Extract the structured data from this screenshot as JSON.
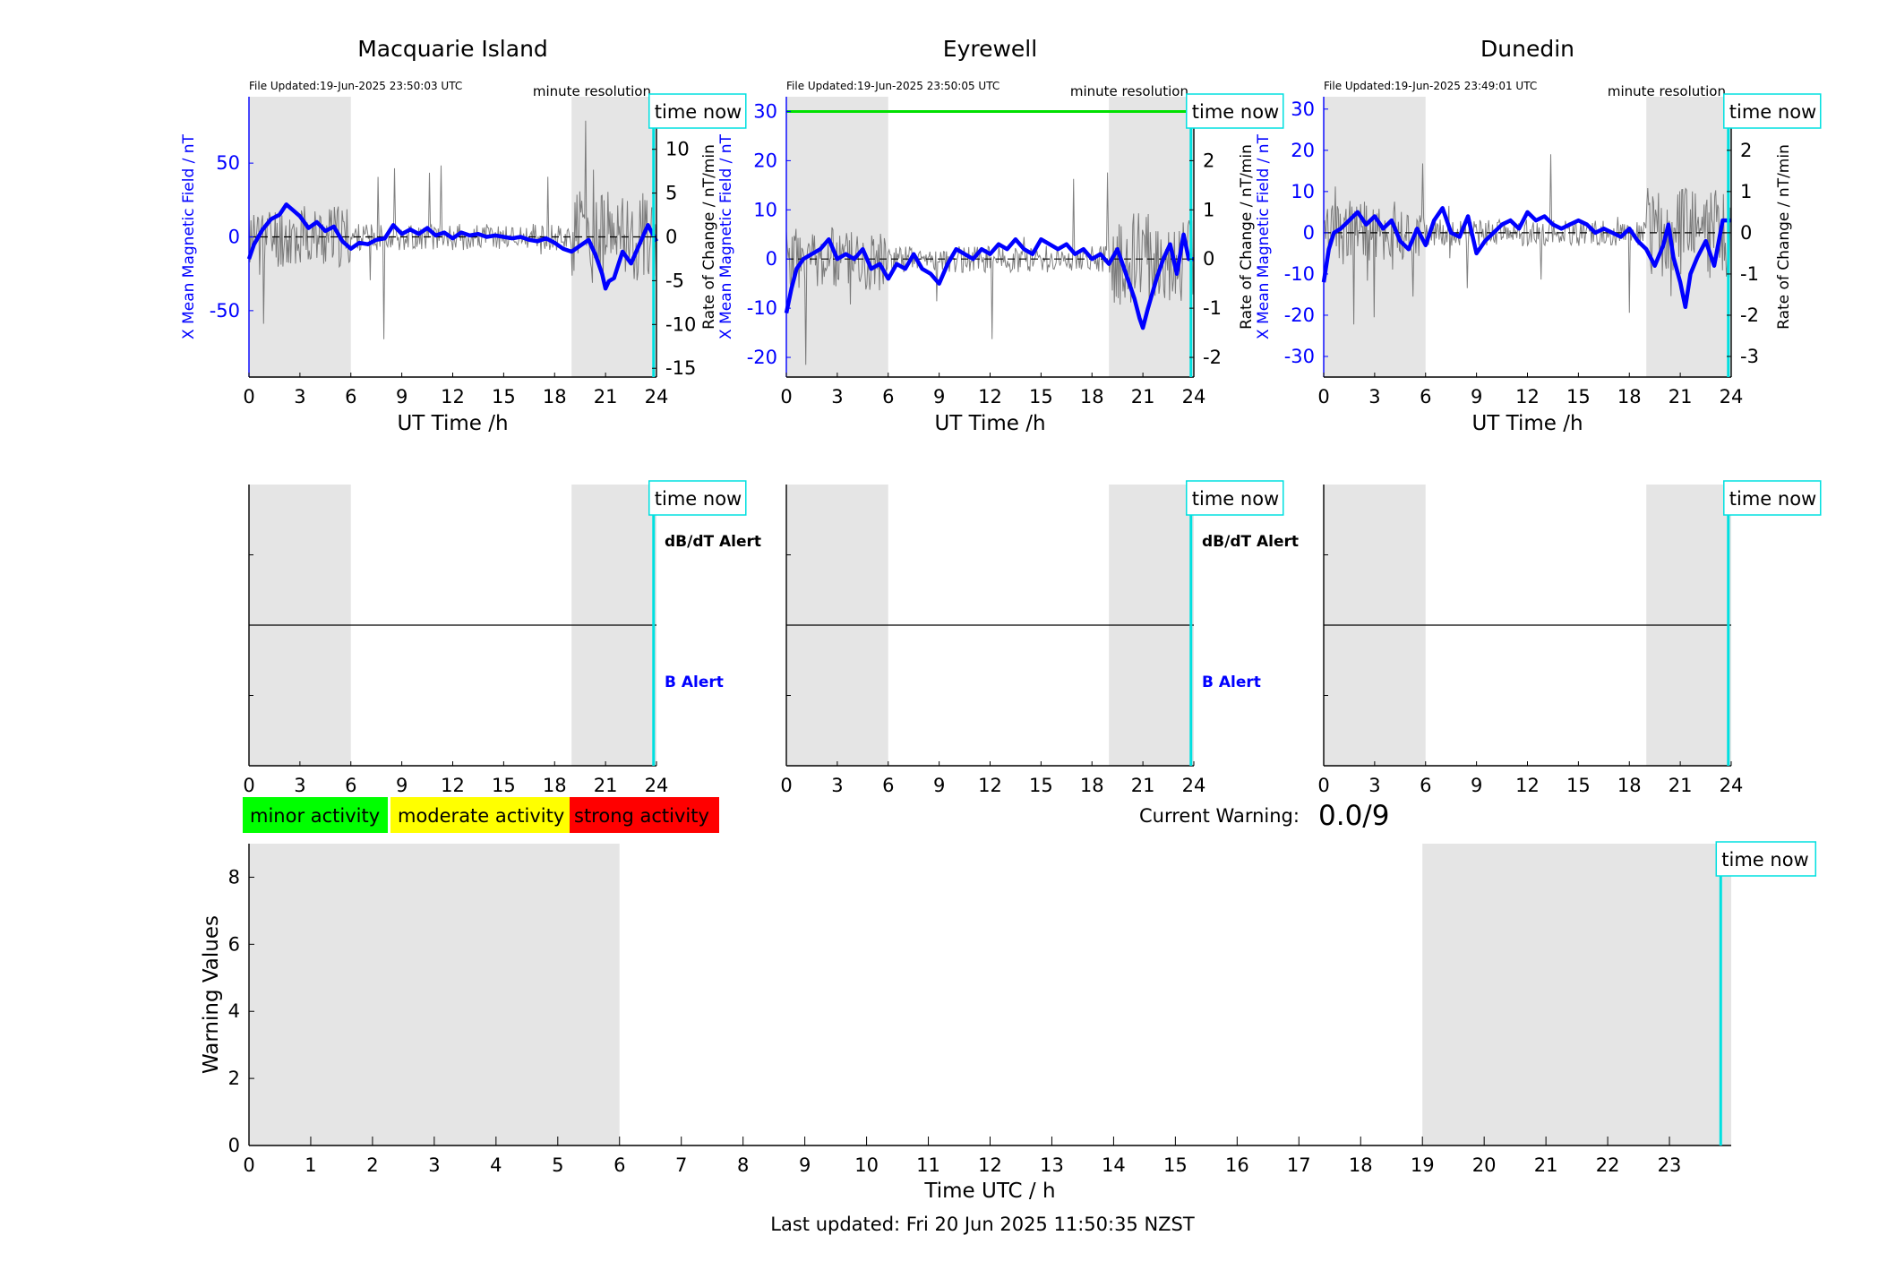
{
  "chart_data": [
    {
      "type": "line",
      "title": "Macquarie Island",
      "file_updated": "File Updated:19-Jun-2025 23:50:03 UTC",
      "resolution_label": "minute resolution",
      "time_now_label": "time now",
      "time_now_h": 23.83,
      "shaded_intervals": [
        [
          0,
          6
        ],
        [
          19,
          24
        ]
      ],
      "xlabel": "UT Time /h",
      "xlim": [
        0,
        24
      ],
      "xticks": [
        "0",
        "3",
        "6",
        "9",
        "12",
        "15",
        "18",
        "21",
        "24"
      ],
      "ylabel": "X Mean Magnetic Field / nT",
      "ylim": [
        -95,
        95
      ],
      "yticks": [
        "-50",
        "0",
        "50"
      ],
      "ylabel_right": "Rate of Change / nT/min",
      "ylim_right": [
        -16,
        16
      ],
      "yticks_right": [
        "-15",
        "-10",
        "-5",
        "0",
        "5",
        "10",
        "15"
      ],
      "alert_line_value": null,
      "grey_seed": 11,
      "series": [
        {
          "color": "#0000ff",
          "x": [
            0,
            0.3,
            0.8,
            1.3,
            1.8,
            2.2,
            2.6,
            3.0,
            3.5,
            4.0,
            4.5,
            5.0,
            5.5,
            6.0,
            6.5,
            7.0,
            7.5,
            8.0,
            8.5,
            9.0,
            9.5,
            10.0,
            10.5,
            11.0,
            11.5,
            12.0,
            12.5,
            13.0,
            13.5,
            14.0,
            14.5,
            15.0,
            15.5,
            16.0,
            16.5,
            17.0,
            17.5,
            18.0,
            18.5,
            19.0,
            19.5,
            20.0,
            20.4,
            20.8,
            21.0,
            21.2,
            21.5,
            22.0,
            22.5,
            23.0,
            23.5,
            24.0
          ],
          "values": [
            -15,
            -5,
            5,
            12,
            15,
            22,
            18,
            14,
            6,
            10,
            4,
            7,
            -3,
            -8,
            -4,
            -5,
            -2,
            -1,
            8,
            2,
            5,
            2,
            6,
            1,
            3,
            -1,
            3,
            1,
            2,
            0,
            1,
            0,
            -1,
            0,
            -2,
            -3,
            -1,
            -4,
            -8,
            -10,
            -6,
            -2,
            -12,
            -25,
            -35,
            -30,
            -28,
            -10,
            -18,
            -5,
            8,
            -3
          ]
        }
      ]
    },
    {
      "type": "line",
      "title": "Eyrewell",
      "file_updated": "File Updated:19-Jun-2025 23:50:05 UTC",
      "resolution_label": "minute resolution",
      "time_now_label": "time now",
      "time_now_h": 23.83,
      "shaded_intervals": [
        [
          0,
          6
        ],
        [
          19,
          24
        ]
      ],
      "xlabel": "UT Time /h",
      "xlim": [
        0,
        24
      ],
      "xticks": [
        "0",
        "3",
        "6",
        "9",
        "12",
        "15",
        "18",
        "21",
        "24"
      ],
      "ylabel": "X Mean Magnetic Field / nT",
      "ylim": [
        -24,
        33
      ],
      "yticks": [
        "-20",
        "-10",
        "0",
        "10",
        "20",
        "30"
      ],
      "ylabel_right": "Rate of Change / nT/min",
      "ylim_right": [
        -2.4,
        3.3
      ],
      "yticks_right": [
        "-2",
        "-1",
        "0",
        "1",
        "2",
        "3"
      ],
      "alert_line_value": 3,
      "alert_line_color": "#00e000",
      "grey_seed": 23,
      "series": [
        {
          "color": "#0000ff",
          "x": [
            0,
            0.3,
            0.6,
            1.0,
            1.5,
            2.0,
            2.5,
            3.0,
            3.5,
            4.0,
            4.5,
            5.0,
            5.5,
            6.0,
            6.5,
            7.0,
            7.5,
            8.0,
            8.5,
            9.0,
            9.5,
            10.0,
            10.5,
            11.0,
            11.5,
            12.0,
            12.5,
            13.0,
            13.5,
            14.0,
            14.5,
            15.0,
            15.5,
            16.0,
            16.5,
            17.0,
            17.5,
            18.0,
            18.5,
            19.0,
            19.5,
            20.0,
            20.5,
            20.8,
            21.0,
            21.3,
            21.8,
            22.2,
            22.6,
            23.0,
            23.4,
            23.7,
            24.0
          ],
          "values": [
            -11,
            -6,
            -2,
            0,
            1,
            2,
            4,
            0,
            1,
            0,
            2,
            -2,
            -1,
            -4,
            -1,
            -2,
            1,
            -2,
            -3,
            -5,
            -1,
            2,
            1,
            0,
            2,
            1,
            3,
            2,
            4,
            2,
            1,
            4,
            3,
            2,
            3,
            1,
            2,
            0,
            1,
            -1,
            2,
            -3,
            -8,
            -12,
            -14,
            -10,
            -4,
            0,
            3,
            -3,
            5,
            0,
            0
          ]
        }
      ]
    },
    {
      "type": "line",
      "title": "Dunedin",
      "file_updated": "File Updated:19-Jun-2025 23:49:01 UTC",
      "resolution_label": "minute resolution",
      "time_now_label": "time now",
      "time_now_h": 23.83,
      "shaded_intervals": [
        [
          0,
          6
        ],
        [
          19,
          24
        ]
      ],
      "xlabel": "UT Time /h",
      "xlim": [
        0,
        24
      ],
      "xticks": [
        "0",
        "3",
        "6",
        "9",
        "12",
        "15",
        "18",
        "21",
        "24"
      ],
      "ylabel": "X Mean Magnetic Field / nT",
      "ylim": [
        -35,
        33
      ],
      "yticks": [
        "-30",
        "-20",
        "-10",
        "0",
        "10",
        "20",
        "30"
      ],
      "ylabel_right": "Rate of Change / nT/min",
      "ylim_right": [
        -3.5,
        3.3
      ],
      "yticks_right": [
        "-3",
        "-2",
        "-1",
        "0",
        "1",
        "2",
        "3"
      ],
      "alert_line_value": null,
      "grey_seed": 37,
      "series": [
        {
          "color": "#0000ff",
          "x": [
            0,
            0.3,
            0.6,
            1.0,
            1.5,
            2.0,
            2.5,
            3.0,
            3.5,
            4.0,
            4.5,
            5.0,
            5.5,
            6.0,
            6.5,
            7.0,
            7.5,
            8.0,
            8.5,
            9.0,
            9.5,
            10.0,
            10.5,
            11.0,
            11.5,
            12.0,
            12.5,
            13.0,
            13.5,
            14.0,
            14.5,
            15.0,
            15.5,
            16.0,
            16.5,
            17.0,
            17.5,
            18.0,
            18.5,
            19.0,
            19.5,
            20.0,
            20.3,
            20.6,
            21.0,
            21.3,
            21.6,
            22.0,
            22.5,
            23.0,
            23.5,
            24.0
          ],
          "values": [
            -12,
            -4,
            0,
            1,
            3,
            5,
            2,
            4,
            1,
            3,
            -2,
            -4,
            1,
            -3,
            3,
            6,
            0,
            -1,
            4,
            -5,
            -2,
            0,
            2,
            3,
            1,
            5,
            3,
            4,
            2,
            1,
            2,
            3,
            2,
            0,
            1,
            0,
            -1,
            1,
            -2,
            -4,
            -8,
            -3,
            2,
            -6,
            -12,
            -18,
            -10,
            -6,
            -2,
            -8,
            3,
            3
          ]
        }
      ]
    },
    {
      "type": "line",
      "name": "alert-panels",
      "time_now_label": "time now",
      "time_now_h": 23.83,
      "shaded_intervals": [
        [
          0,
          6
        ],
        [
          19,
          24
        ]
      ],
      "xlim": [
        0,
        24
      ],
      "xticks": [
        "0",
        "3",
        "6",
        "9",
        "12",
        "15",
        "18",
        "21",
        "24"
      ],
      "center_line": true,
      "labels": {
        "dbdt": "dB/dT Alert",
        "b": "B Alert"
      },
      "panels_with_labels": [
        0,
        1
      ]
    },
    {
      "type": "bar",
      "ylabel": "Warning Values",
      "xlabel": "Time UTC / h",
      "xlim": [
        0,
        24
      ],
      "ylim": [
        0,
        9
      ],
      "xticks": [
        "0",
        "1",
        "2",
        "3",
        "4",
        "5",
        "6",
        "7",
        "8",
        "9",
        "10",
        "11",
        "12",
        "13",
        "14",
        "15",
        "16",
        "17",
        "18",
        "19",
        "20",
        "21",
        "22",
        "23"
      ],
      "yticks": [
        "0",
        "2",
        "4",
        "6",
        "8"
      ],
      "time_now_label": "time now",
      "time_now_h": 23.83,
      "shaded_intervals": [
        [
          0,
          6
        ],
        [
          19,
          24
        ]
      ],
      "values": []
    }
  ],
  "legend": [
    {
      "label": "minor activity",
      "color": "#00ff00"
    },
    {
      "label": "moderate activity",
      "color": "#ffff00"
    },
    {
      "label": "strong activity",
      "color": "#ff0000"
    }
  ],
  "current_warning": {
    "label": "Current Warning:",
    "value": "0.0/9"
  },
  "footer": "Last updated: Fri 20 Jun 2025 11:50:35 NZST"
}
